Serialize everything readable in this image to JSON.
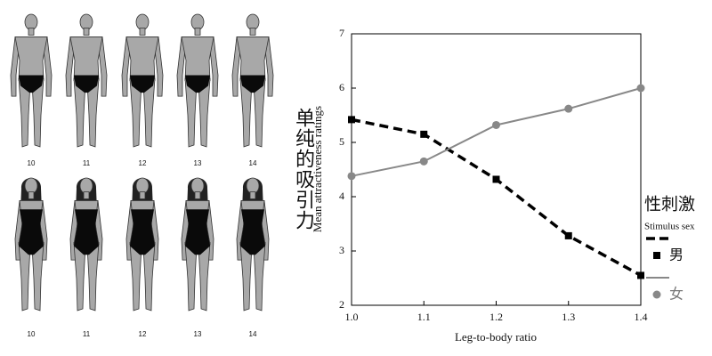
{
  "chart_data": {
    "type": "line",
    "annotations": [
      "单纯的吸引力",
      "性刺激"
    ],
    "legend_title": "Stimulus sex",
    "y_label": "Mean attractiveness ratings",
    "x_label": "Leg-to-body ratio",
    "x": [
      1.0,
      1.1,
      1.2,
      1.3,
      1.4
    ],
    "series": [
      {
        "name": "男",
        "color": "#000000",
        "marker": "square",
        "dashed": true,
        "values": [
          5.42,
          5.15,
          4.32,
          3.28,
          2.55
        ]
      },
      {
        "name": "女",
        "color": "#888888",
        "marker": "circle",
        "dashed": false,
        "values": [
          4.38,
          4.65,
          5.32,
          5.62,
          6.0
        ]
      }
    ],
    "xlim": [
      1.0,
      1.4
    ],
    "xticks": [
      {
        "value": 1.0,
        "label": "1.0"
      },
      1.1,
      1.2,
      1.3,
      1.4
    ],
    "ylim": [
      2,
      7
    ],
    "yticks": [
      2,
      3,
      4,
      5,
      6,
      7
    ],
    "grid": false
  },
  "figures": {
    "male": [
      10,
      11,
      12,
      13,
      14
    ],
    "female": [
      10,
      11,
      12,
      13,
      14
    ]
  }
}
